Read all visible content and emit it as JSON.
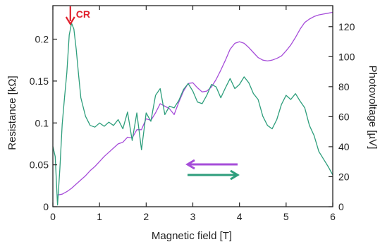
{
  "chart_data": {
    "type": "line",
    "title": "",
    "xlabel": "Magnetic field [T]",
    "xlim": [
      0,
      6
    ],
    "xticks": [
      "0",
      "1",
      "2",
      "3",
      "4",
      "5",
      "6"
    ],
    "y_left": {
      "label": "Resistance [kΩ]",
      "lim": [
        0,
        0.24
      ],
      "ticks": [
        "0",
        "0.05",
        "0.1",
        "0.15",
        "0.2"
      ]
    },
    "y_right": {
      "label": "Photovoltage [µV]",
      "lim": [
        0,
        134
      ],
      "ticks": [
        "0",
        "20",
        "40",
        "60",
        "80",
        "100",
        "120"
      ]
    },
    "legend": "none",
    "grid": false,
    "colors": {
      "resistance": "#a64dd9",
      "photovoltage": "#2e9e7c",
      "annotation": "#e0202c"
    },
    "annotation": {
      "text": "CR",
      "x": 0.45,
      "arrow": "down",
      "color": "#e0202c"
    },
    "direction_arrows": [
      {
        "direction": "left",
        "color": "#a64dd9"
      },
      {
        "direction": "right",
        "color": "#2e9e7c"
      }
    ],
    "series": [
      {
        "axis": "left",
        "color": "#a64dd9",
        "x": [
          0.1,
          0.2,
          0.3,
          0.4,
          0.5,
          0.6,
          0.7,
          0.8,
          0.9,
          1.0,
          1.1,
          1.2,
          1.3,
          1.4,
          1.5,
          1.6,
          1.7,
          1.8,
          1.9,
          2.0,
          2.1,
          2.2,
          2.3,
          2.4,
          2.5,
          2.6,
          2.7,
          2.8,
          2.9,
          3.0,
          3.1,
          3.2,
          3.3,
          3.4,
          3.5,
          3.6,
          3.7,
          3.8,
          3.9,
          4.0,
          4.1,
          4.2,
          4.3,
          4.4,
          4.5,
          4.6,
          4.7,
          4.8,
          4.9,
          5.0,
          5.1,
          5.2,
          5.3,
          5.4,
          5.5,
          5.6,
          5.7,
          5.8,
          5.9,
          6.0
        ],
        "values": [
          0.014,
          0.015,
          0.018,
          0.022,
          0.027,
          0.032,
          0.037,
          0.043,
          0.048,
          0.054,
          0.06,
          0.065,
          0.07,
          0.075,
          0.077,
          0.083,
          0.082,
          0.092,
          0.092,
          0.105,
          0.103,
          0.112,
          0.123,
          0.12,
          0.117,
          0.11,
          0.125,
          0.138,
          0.147,
          0.148,
          0.142,
          0.137,
          0.138,
          0.143,
          0.152,
          0.163,
          0.175,
          0.188,
          0.195,
          0.197,
          0.195,
          0.19,
          0.184,
          0.178,
          0.175,
          0.174,
          0.175,
          0.177,
          0.18,
          0.186,
          0.193,
          0.202,
          0.212,
          0.22,
          0.224,
          0.227,
          0.229,
          0.23,
          0.231,
          0.232
        ]
      },
      {
        "axis": "left",
        "color": "#2e9e7c",
        "x": [
          0.0,
          0.05,
          0.1,
          0.15,
          0.2,
          0.25,
          0.3,
          0.35,
          0.4,
          0.45,
          0.5,
          0.55,
          0.6,
          0.7,
          0.8,
          0.9,
          1.0,
          1.1,
          1.2,
          1.3,
          1.4,
          1.5,
          1.6,
          1.7,
          1.8,
          1.9,
          2.0,
          2.1,
          2.2,
          2.3,
          2.4,
          2.5,
          2.6,
          2.7,
          2.8,
          2.9,
          3.0,
          3.1,
          3.2,
          3.3,
          3.4,
          3.5,
          3.6,
          3.7,
          3.8,
          3.9,
          4.0,
          4.1,
          4.2,
          4.3,
          4.4,
          4.5,
          4.6,
          4.7,
          4.8,
          4.9,
          5.0,
          5.1,
          5.2,
          5.3,
          5.4,
          5.5,
          5.6,
          5.7,
          5.8,
          5.9,
          6.0
        ],
        "values": [
          0.072,
          0.06,
          0.002,
          0.045,
          0.098,
          0.13,
          0.16,
          0.205,
          0.219,
          0.212,
          0.188,
          0.158,
          0.13,
          0.108,
          0.097,
          0.095,
          0.1,
          0.096,
          0.101,
          0.097,
          0.104,
          0.093,
          0.113,
          0.079,
          0.112,
          0.068,
          0.112,
          0.102,
          0.133,
          0.141,
          0.11,
          0.12,
          0.118,
          0.127,
          0.14,
          0.147,
          0.138,
          0.125,
          0.123,
          0.133,
          0.146,
          0.143,
          0.13,
          0.142,
          0.153,
          0.141,
          0.146,
          0.155,
          0.148,
          0.135,
          0.128,
          0.108,
          0.097,
          0.093,
          0.104,
          0.122,
          0.133,
          0.128,
          0.135,
          0.126,
          0.118,
          0.097,
          0.085,
          0.066,
          0.057,
          0.048,
          0.038
        ]
      }
    ]
  }
}
